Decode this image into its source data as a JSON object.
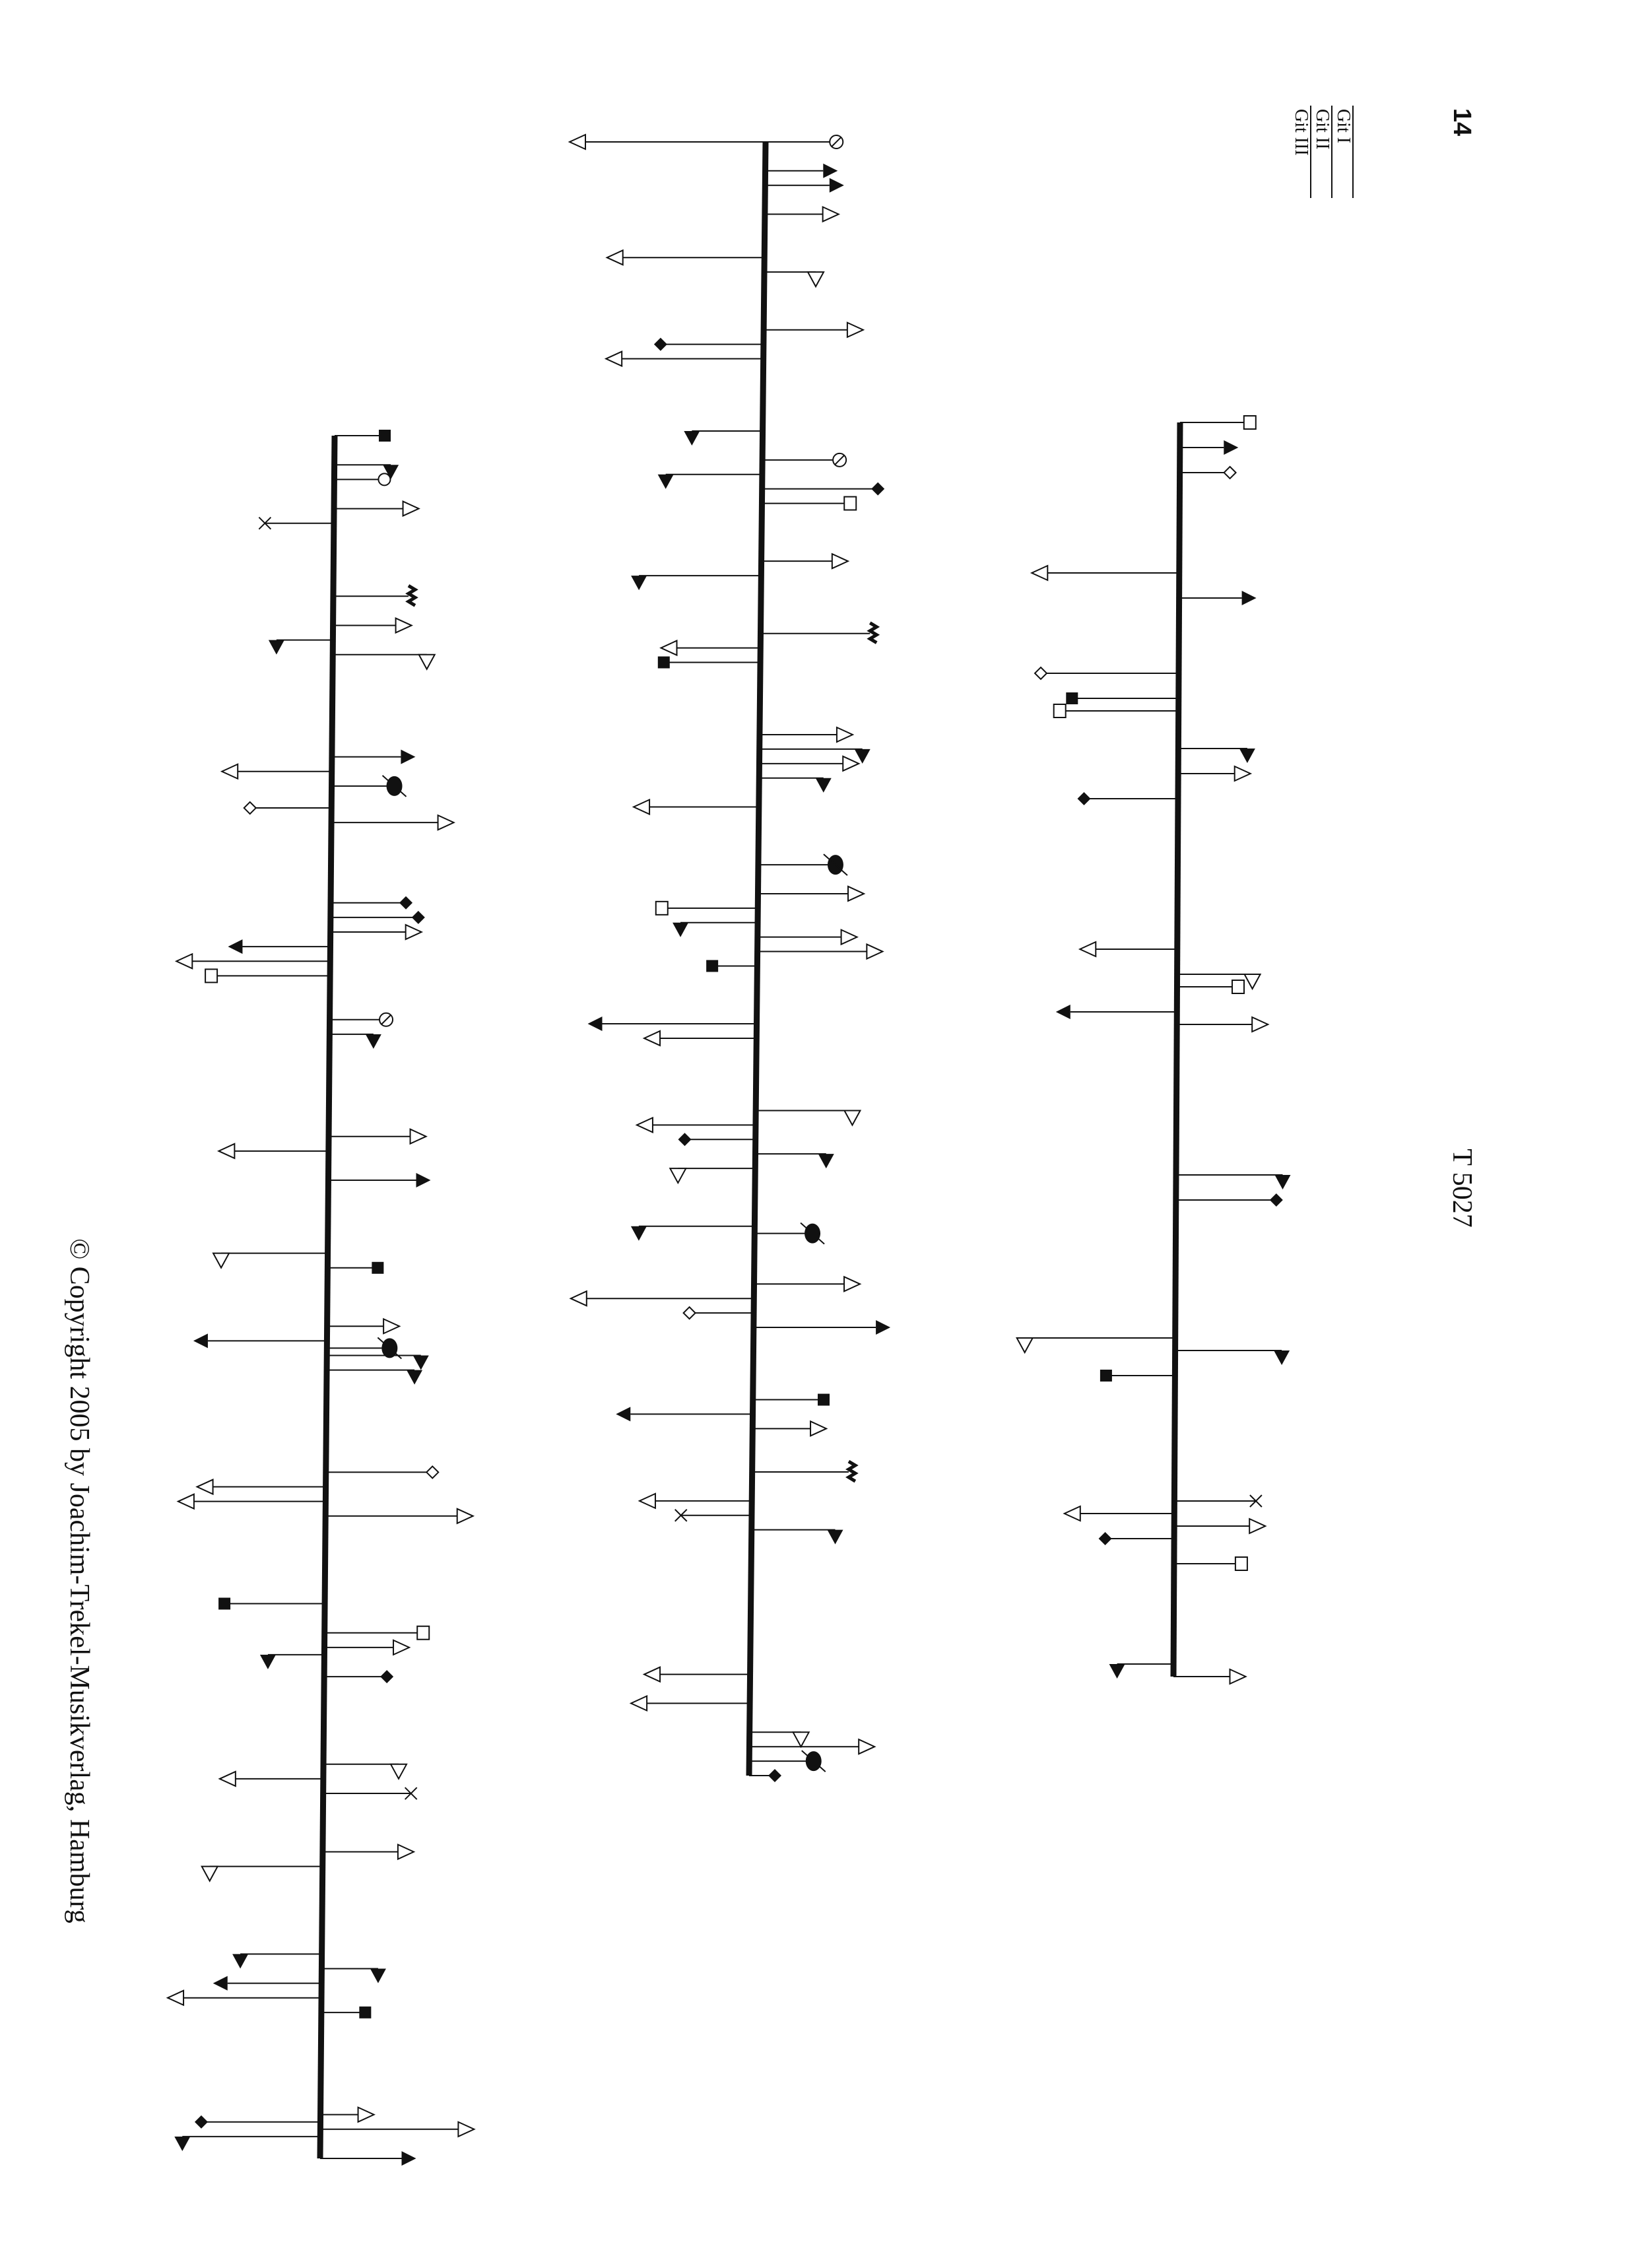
{
  "header": {
    "page_number": "14",
    "catalog_number": "T 5027"
  },
  "legend": {
    "items": [
      "Git I",
      "Git II",
      "Git III"
    ]
  },
  "footer": {
    "copyright": "© Copyright 2005 by Joachim-Trekel-Musikverlag, Hamburg"
  },
  "notation": {
    "systems": [
      {
        "name": "system-1",
        "events": [
          {
            "pos": 0.0,
            "dir": "up",
            "len": 0.52,
            "head": "open-square"
          },
          {
            "pos": 0.02,
            "dir": "up",
            "len": 0.35,
            "head": "filled-arrow"
          },
          {
            "pos": 0.04,
            "dir": "up",
            "len": 0.4,
            "head": "open-diamond"
          },
          {
            "pos": 0.12,
            "dir": "down",
            "len": 1.05,
            "head": "open-arrow"
          },
          {
            "pos": 0.14,
            "dir": "up",
            "len": 0.5,
            "head": "filled-arrow"
          },
          {
            "pos": 0.2,
            "dir": "down",
            "len": 1.1,
            "head": "open-diamond"
          },
          {
            "pos": 0.22,
            "dir": "down",
            "len": 0.85,
            "head": "filled-square"
          },
          {
            "pos": 0.23,
            "dir": "down",
            "len": 0.9,
            "head": "open-square"
          },
          {
            "pos": 0.26,
            "dir": "up",
            "len": 0.55,
            "head": "filled-flag-down"
          },
          {
            "pos": 0.28,
            "dir": "up",
            "len": 0.45,
            "head": "open-arrow"
          },
          {
            "pos": 0.3,
            "dir": "down",
            "len": 0.75,
            "head": "filled-diamond"
          },
          {
            "pos": 0.42,
            "dir": "down",
            "len": 0.65,
            "head": "open-arrow"
          },
          {
            "pos": 0.44,
            "dir": "up",
            "len": 0.6,
            "head": "open-flag-down"
          },
          {
            "pos": 0.45,
            "dir": "up",
            "len": 0.45,
            "head": "open-square"
          },
          {
            "pos": 0.47,
            "dir": "down",
            "len": 0.85,
            "head": "filled-arrow"
          },
          {
            "pos": 0.48,
            "dir": "up",
            "len": 0.6,
            "head": "open-arrow"
          },
          {
            "pos": 0.6,
            "dir": "up",
            "len": 0.85,
            "head": "filled-flag-down"
          },
          {
            "pos": 0.62,
            "dir": "up",
            "len": 0.8,
            "head": "filled-diamond"
          },
          {
            "pos": 0.73,
            "dir": "down",
            "len": 1.2,
            "head": "open-flag-down"
          },
          {
            "pos": 0.74,
            "dir": "up",
            "len": 0.85,
            "head": "filled-flag-down"
          },
          {
            "pos": 0.76,
            "dir": "down",
            "len": 0.55,
            "head": "filled-square"
          },
          {
            "pos": 0.86,
            "dir": "up",
            "len": 0.65,
            "head": "x"
          },
          {
            "pos": 0.87,
            "dir": "down",
            "len": 0.75,
            "head": "open-arrow"
          },
          {
            "pos": 0.88,
            "dir": "up",
            "len": 0.6,
            "head": "open-arrow"
          },
          {
            "pos": 0.89,
            "dir": "down",
            "len": 0.55,
            "head": "filled-diamond"
          },
          {
            "pos": 0.91,
            "dir": "up",
            "len": 0.5,
            "head": "open-square"
          },
          {
            "pos": 0.99,
            "dir": "down",
            "len": 0.45,
            "head": "filled-flag-down"
          },
          {
            "pos": 1.0,
            "dir": "up",
            "len": 0.45,
            "head": "open-arrow"
          }
        ]
      },
      {
        "name": "system-2",
        "events": [
          {
            "pos": 0.0,
            "dir": "up",
            "len": 0.55,
            "head": "crossed-circle"
          },
          {
            "pos": 0.0,
            "dir": "down",
            "len": 1.4,
            "head": "open-arrow"
          },
          {
            "pos": 0.02,
            "dir": "up",
            "len": 0.45,
            "head": "filled-arrow"
          },
          {
            "pos": 0.03,
            "dir": "up",
            "len": 0.5,
            "head": "filled-arrow"
          },
          {
            "pos": 0.05,
            "dir": "up",
            "len": 0.45,
            "head": "open-arrow"
          },
          {
            "pos": 0.08,
            "dir": "down",
            "len": 1.1,
            "head": "open-arrow"
          },
          {
            "pos": 0.09,
            "dir": "up",
            "len": 0.4,
            "head": "open-flag-down"
          },
          {
            "pos": 0.13,
            "dir": "up",
            "len": 0.65,
            "head": "open-arrow"
          },
          {
            "pos": 0.14,
            "dir": "down",
            "len": 0.8,
            "head": "filled-diamond"
          },
          {
            "pos": 0.15,
            "dir": "down",
            "len": 1.1,
            "head": "open-arrow"
          },
          {
            "pos": 0.2,
            "dir": "down",
            "len": 0.55,
            "head": "filled-flag-down"
          },
          {
            "pos": 0.22,
            "dir": "up",
            "len": 0.6,
            "head": "crossed-circle"
          },
          {
            "pos": 0.23,
            "dir": "down",
            "len": 0.75,
            "head": "filled-flag-down"
          },
          {
            "pos": 0.24,
            "dir": "up",
            "len": 0.9,
            "head": "filled-diamond"
          },
          {
            "pos": 0.25,
            "dir": "up",
            "len": 0.65,
            "head": "open-square"
          },
          {
            "pos": 0.29,
            "dir": "up",
            "len": 0.55,
            "head": "open-arrow"
          },
          {
            "pos": 0.3,
            "dir": "down",
            "len": 0.95,
            "head": "filled-flag-down"
          },
          {
            "pos": 0.34,
            "dir": "up",
            "len": 0.85,
            "head": "zigzag"
          },
          {
            "pos": 0.35,
            "dir": "down",
            "len": 0.65,
            "head": "open-arrow"
          },
          {
            "pos": 0.36,
            "dir": "down",
            "len": 0.75,
            "head": "filled-square"
          },
          {
            "pos": 0.41,
            "dir": "up",
            "len": 0.6,
            "head": "open-arrow"
          },
          {
            "pos": 0.42,
            "dir": "up",
            "len": 0.8,
            "head": "filled-flag-down"
          },
          {
            "pos": 0.43,
            "dir": "up",
            "len": 0.65,
            "head": "open-arrow"
          },
          {
            "pos": 0.44,
            "dir": "up",
            "len": 0.5,
            "head": "filled-flag-down"
          },
          {
            "pos": 0.46,
            "dir": "down",
            "len": 0.85,
            "head": "open-arrow"
          },
          {
            "pos": 0.5,
            "dir": "up",
            "len": 0.6,
            "head": "crossed-oval"
          },
          {
            "pos": 0.52,
            "dir": "up",
            "len": 0.7,
            "head": "open-arrow"
          },
          {
            "pos": 0.53,
            "dir": "down",
            "len": 0.7,
            "head": "open-square"
          },
          {
            "pos": 0.54,
            "dir": "down",
            "len": 0.6,
            "head": "filled-flag-down"
          },
          {
            "pos": 0.55,
            "dir": "up",
            "len": 0.65,
            "head": "open-arrow"
          },
          {
            "pos": 0.56,
            "dir": "up",
            "len": 0.85,
            "head": "open-arrow"
          },
          {
            "pos": 0.57,
            "dir": "down",
            "len": 0.35,
            "head": "filled-square"
          },
          {
            "pos": 0.61,
            "dir": "down",
            "len": 1.2,
            "head": "filled-arrow"
          },
          {
            "pos": 0.62,
            "dir": "down",
            "len": 0.75,
            "head": "open-arrow"
          },
          {
            "pos": 0.67,
            "dir": "up",
            "len": 0.75,
            "head": "open-flag-down"
          },
          {
            "pos": 0.68,
            "dir": "down",
            "len": 0.8,
            "head": "open-arrow"
          },
          {
            "pos": 0.69,
            "dir": "down",
            "len": 0.55,
            "head": "filled-diamond"
          },
          {
            "pos": 0.7,
            "dir": "up",
            "len": 0.55,
            "head": "filled-flag-down"
          },
          {
            "pos": 0.71,
            "dir": "down",
            "len": 0.6,
            "head": "open-flag-down"
          },
          {
            "pos": 0.75,
            "dir": "down",
            "len": 0.9,
            "head": "filled-flag-down"
          },
          {
            "pos": 0.755,
            "dir": "up",
            "len": 0.45,
            "head": "crossed-oval"
          },
          {
            "pos": 0.79,
            "dir": "up",
            "len": 0.7,
            "head": "open-arrow"
          },
          {
            "pos": 0.8,
            "dir": "down",
            "len": 1.3,
            "head": "open-arrow"
          },
          {
            "pos": 0.81,
            "dir": "down",
            "len": 0.5,
            "head": "open-diamond"
          },
          {
            "pos": 0.82,
            "dir": "up",
            "len": 0.95,
            "head": "filled-arrow"
          },
          {
            "pos": 0.87,
            "dir": "up",
            "len": 0.55,
            "head": "filled-square"
          },
          {
            "pos": 0.88,
            "dir": "down",
            "len": 0.95,
            "head": "filled-arrow"
          },
          {
            "pos": 0.89,
            "dir": "up",
            "len": 0.45,
            "head": "open-arrow"
          },
          {
            "pos": 0.92,
            "dir": "up",
            "len": 0.75,
            "head": "zigzag"
          },
          {
            "pos": 0.94,
            "dir": "down",
            "len": 0.75,
            "head": "open-arrow"
          },
          {
            "pos": 0.95,
            "dir": "down",
            "len": 0.55,
            "head": "x"
          },
          {
            "pos": 0.96,
            "dir": "up",
            "len": 0.65,
            "head": "filled-flag-down"
          },
          {
            "pos": 1.06,
            "dir": "down",
            "len": 0.7,
            "head": "open-arrow"
          },
          {
            "pos": 1.08,
            "dir": "down",
            "len": 0.8,
            "head": "open-arrow"
          },
          {
            "pos": 1.1,
            "dir": "up",
            "len": 0.4,
            "head": "open-flag-down"
          },
          {
            "pos": 1.11,
            "dir": "up",
            "len": 0.85,
            "head": "open-arrow"
          },
          {
            "pos": 1.12,
            "dir": "up",
            "len": 0.5,
            "head": "crossed-oval"
          },
          {
            "pos": 1.13,
            "dir": "up",
            "len": 0.2,
            "head": "filled-diamond"
          }
        ]
      },
      {
        "name": "system-3",
        "events": [
          {
            "pos": 0.0,
            "dir": "up",
            "len": 0.4,
            "head": "filled-square"
          },
          {
            "pos": 0.02,
            "dir": "up",
            "len": 0.45,
            "head": "filled-flag-down"
          },
          {
            "pos": 0.03,
            "dir": "up",
            "len": 0.4,
            "head": "open-circle"
          },
          {
            "pos": 0.05,
            "dir": "up",
            "len": 0.55,
            "head": "open-arrow"
          },
          {
            "pos": 0.06,
            "dir": "down",
            "len": 0.55,
            "head": "x"
          },
          {
            "pos": 0.11,
            "dir": "up",
            "len": 0.6,
            "head": "zigzag"
          },
          {
            "pos": 0.13,
            "dir": "up",
            "len": 0.5,
            "head": "open-arrow"
          },
          {
            "pos": 0.14,
            "dir": "down",
            "len": 0.45,
            "head": "filled-flag-down"
          },
          {
            "pos": 0.15,
            "dir": "up",
            "len": 0.75,
            "head": "open-flag-down"
          },
          {
            "pos": 0.22,
            "dir": "up",
            "len": 0.55,
            "head": "filled-arrow"
          },
          {
            "pos": 0.23,
            "dir": "down",
            "len": 0.75,
            "head": "open-arrow"
          },
          {
            "pos": 0.24,
            "dir": "up",
            "len": 0.5,
            "head": "crossed-oval"
          },
          {
            "pos": 0.255,
            "dir": "down",
            "len": 0.65,
            "head": "open-diamond"
          },
          {
            "pos": 0.265,
            "dir": "up",
            "len": 0.85,
            "head": "open-arrow"
          },
          {
            "pos": 0.32,
            "dir": "up",
            "len": 0.6,
            "head": "filled-diamond"
          },
          {
            "pos": 0.33,
            "dir": "up",
            "len": 0.7,
            "head": "filled-diamond"
          },
          {
            "pos": 0.34,
            "dir": "up",
            "len": 0.6,
            "head": "open-arrow"
          },
          {
            "pos": 0.35,
            "dir": "down",
            "len": 0.7,
            "head": "filled-arrow"
          },
          {
            "pos": 0.36,
            "dir": "down",
            "len": 1.1,
            "head": "open-arrow"
          },
          {
            "pos": 0.37,
            "dir": "down",
            "len": 0.9,
            "head": "open-square"
          },
          {
            "pos": 0.4,
            "dir": "up",
            "len": 0.45,
            "head": "crossed-circle"
          },
          {
            "pos": 0.41,
            "dir": "up",
            "len": 0.35,
            "head": "filled-flag-down"
          },
          {
            "pos": 0.48,
            "dir": "up",
            "len": 0.65,
            "head": "open-arrow"
          },
          {
            "pos": 0.49,
            "dir": "down",
            "len": 0.75,
            "head": "open-arrow"
          },
          {
            "pos": 0.51,
            "dir": "up",
            "len": 0.7,
            "head": "filled-arrow"
          },
          {
            "pos": 0.56,
            "dir": "down",
            "len": 0.85,
            "head": "open-flag-down"
          },
          {
            "pos": 0.57,
            "dir": "up",
            "len": 0.4,
            "head": "filled-square"
          },
          {
            "pos": 0.61,
            "dir": "up",
            "len": 0.45,
            "head": "open-arrow"
          },
          {
            "pos": 0.62,
            "dir": "down",
            "len": 0.95,
            "head": "filled-arrow"
          },
          {
            "pos": 0.625,
            "dir": "up",
            "len": 0.5,
            "head": "crossed-oval"
          },
          {
            "pos": 0.63,
            "dir": "up",
            "len": 0.75,
            "head": "filled-flag-down"
          },
          {
            "pos": 0.64,
            "dir": "up",
            "len": 0.7,
            "head": "filled-flag-down"
          },
          {
            "pos": 0.71,
            "dir": "up",
            "len": 0.85,
            "head": "open-diamond"
          },
          {
            "pos": 0.72,
            "dir": "down",
            "len": 0.9,
            "head": "open-arrow"
          },
          {
            "pos": 0.73,
            "dir": "down",
            "len": 1.05,
            "head": "open-arrow"
          },
          {
            "pos": 0.74,
            "dir": "up",
            "len": 1.05,
            "head": "open-arrow"
          },
          {
            "pos": 0.8,
            "dir": "down",
            "len": 0.8,
            "head": "filled-square"
          },
          {
            "pos": 0.82,
            "dir": "up",
            "len": 0.75,
            "head": "open-square"
          },
          {
            "pos": 0.83,
            "dir": "up",
            "len": 0.55,
            "head": "open-arrow"
          },
          {
            "pos": 0.835,
            "dir": "down",
            "len": 0.45,
            "head": "filled-flag-down"
          },
          {
            "pos": 0.85,
            "dir": "up",
            "len": 0.5,
            "head": "filled-diamond"
          },
          {
            "pos": 0.91,
            "dir": "up",
            "len": 0.6,
            "head": "open-flag-down"
          },
          {
            "pos": 0.92,
            "dir": "down",
            "len": 0.7,
            "head": "open-arrow"
          },
          {
            "pos": 0.93,
            "dir": "up",
            "len": 0.7,
            "head": "x"
          },
          {
            "pos": 0.97,
            "dir": "up",
            "len": 0.6,
            "head": "open-arrow"
          },
          {
            "pos": 0.98,
            "dir": "down",
            "len": 0.9,
            "head": "open-flag-down"
          },
          {
            "pos": 1.04,
            "dir": "down",
            "len": 0.65,
            "head": "filled-flag-down"
          },
          {
            "pos": 1.05,
            "dir": "up",
            "len": 0.45,
            "head": "filled-flag-down"
          },
          {
            "pos": 1.06,
            "dir": "down",
            "len": 0.75,
            "head": "filled-arrow"
          },
          {
            "pos": 1.07,
            "dir": "down",
            "len": 1.1,
            "head": "open-arrow"
          },
          {
            "pos": 1.08,
            "dir": "up",
            "len": 0.35,
            "head": "filled-square"
          },
          {
            "pos": 1.15,
            "dir": "up",
            "len": 0.3,
            "head": "open-arrow"
          },
          {
            "pos": 1.155,
            "dir": "down",
            "len": 0.95,
            "head": "filled-diamond"
          },
          {
            "pos": 1.16,
            "dir": "up",
            "len": 1.1,
            "head": "open-arrow"
          },
          {
            "pos": 1.165,
            "dir": "down",
            "len": 1.1,
            "head": "filled-flag-down"
          },
          {
            "pos": 1.18,
            "dir": "up",
            "len": 0.65,
            "head": "filled-arrow"
          }
        ]
      }
    ]
  }
}
